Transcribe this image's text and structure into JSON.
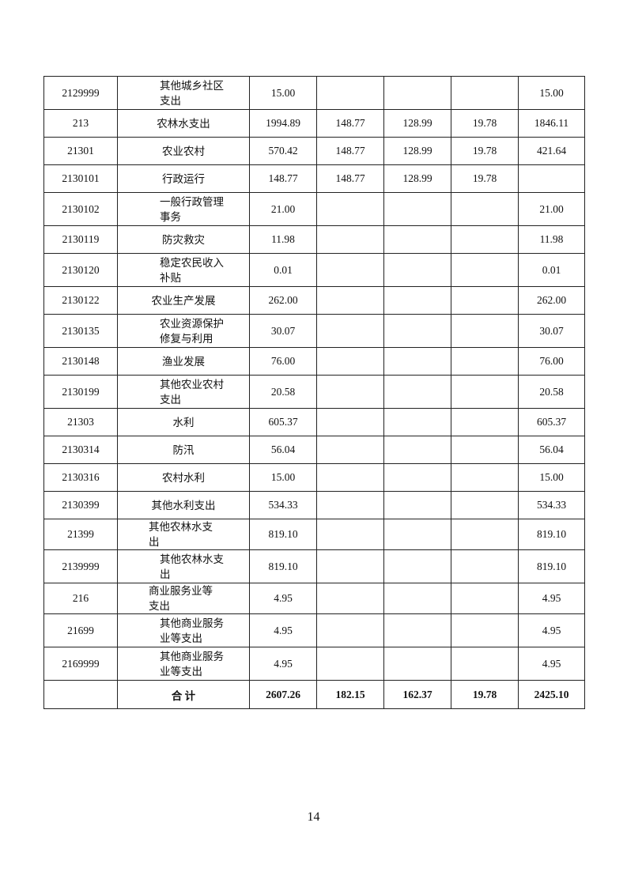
{
  "table": {
    "rows": [
      {
        "code": "2129999",
        "name": "其他城乡社区支出",
        "c1": "15.00",
        "c2": "",
        "c3": "",
        "c4": "",
        "c5": "15.00",
        "tall": true
      },
      {
        "code": "213",
        "name": "农林水支出",
        "c1": "1994.89",
        "c2": "148.77",
        "c3": "128.99",
        "c4": "19.78",
        "c5": "1846.11"
      },
      {
        "code": "21301",
        "name": "农业农村",
        "c1": "570.42",
        "c2": "148.77",
        "c3": "128.99",
        "c4": "19.78",
        "c5": "421.64"
      },
      {
        "code": "2130101",
        "name": "行政运行",
        "c1": "148.77",
        "c2": "148.77",
        "c3": "128.99",
        "c4": "19.78",
        "c5": ""
      },
      {
        "code": "2130102",
        "name": "一般行政管理事务",
        "c1": "21.00",
        "c2": "",
        "c3": "",
        "c4": "",
        "c5": "21.00",
        "tall": true
      },
      {
        "code": "2130119",
        "name": "防灾救灾",
        "c1": "11.98",
        "c2": "",
        "c3": "",
        "c4": "",
        "c5": "11.98"
      },
      {
        "code": "2130120",
        "name": "稳定农民收入补贴",
        "c1": "0.01",
        "c2": "",
        "c3": "",
        "c4": "",
        "c5": "0.01",
        "tall": true
      },
      {
        "code": "2130122",
        "name": "农业生产发展",
        "c1": "262.00",
        "c2": "",
        "c3": "",
        "c4": "",
        "c5": "262.00"
      },
      {
        "code": "2130135",
        "name": "农业资源保护修复与利用",
        "c1": "30.07",
        "c2": "",
        "c3": "",
        "c4": "",
        "c5": "30.07",
        "tall": true
      },
      {
        "code": "2130148",
        "name": "渔业发展",
        "c1": "76.00",
        "c2": "",
        "c3": "",
        "c4": "",
        "c5": "76.00"
      },
      {
        "code": "2130199",
        "name": "其他农业农村支出",
        "c1": "20.58",
        "c2": "",
        "c3": "",
        "c4": "",
        "c5": "20.58",
        "tall": true
      },
      {
        "code": "21303",
        "name": "水利",
        "c1": "605.37",
        "c2": "",
        "c3": "",
        "c4": "",
        "c5": "605.37"
      },
      {
        "code": "2130314",
        "name": "防汛",
        "c1": "56.04",
        "c2": "",
        "c3": "",
        "c4": "",
        "c5": "56.04"
      },
      {
        "code": "2130316",
        "name": "农村水利",
        "c1": "15.00",
        "c2": "",
        "c3": "",
        "c4": "",
        "c5": "15.00"
      },
      {
        "code": "2130399",
        "name": "其他水利支出",
        "c1": "534.33",
        "c2": "",
        "c3": "",
        "c4": "",
        "c5": "534.33"
      },
      {
        "code": "21399",
        "name": "其他农林水支出",
        "c1": "819.10",
        "c2": "",
        "c3": "",
        "c4": "",
        "c5": "819.10"
      },
      {
        "code": "2139999",
        "name": "其他农林水支出",
        "c1": "819.10",
        "c2": "",
        "c3": "",
        "c4": "",
        "c5": "819.10",
        "tall": true
      },
      {
        "code": "216",
        "name": "商业服务业等支出",
        "c1": "4.95",
        "c2": "",
        "c3": "",
        "c4": "",
        "c5": "4.95"
      },
      {
        "code": "21699",
        "name": "其他商业服务业等支出",
        "c1": "4.95",
        "c2": "",
        "c3": "",
        "c4": "",
        "c5": "4.95",
        "tall": true
      },
      {
        "code": "2169999",
        "name": "其他商业服务业等支出",
        "c1": "4.95",
        "c2": "",
        "c3": "",
        "c4": "",
        "c5": "4.95",
        "tall": true
      }
    ],
    "total": {
      "code": "",
      "name": "合 计",
      "c1": "2607.26",
      "c2": "182.15",
      "c3": "162.37",
      "c4": "19.78",
      "c5": "2425.10"
    }
  },
  "page_number": "14"
}
